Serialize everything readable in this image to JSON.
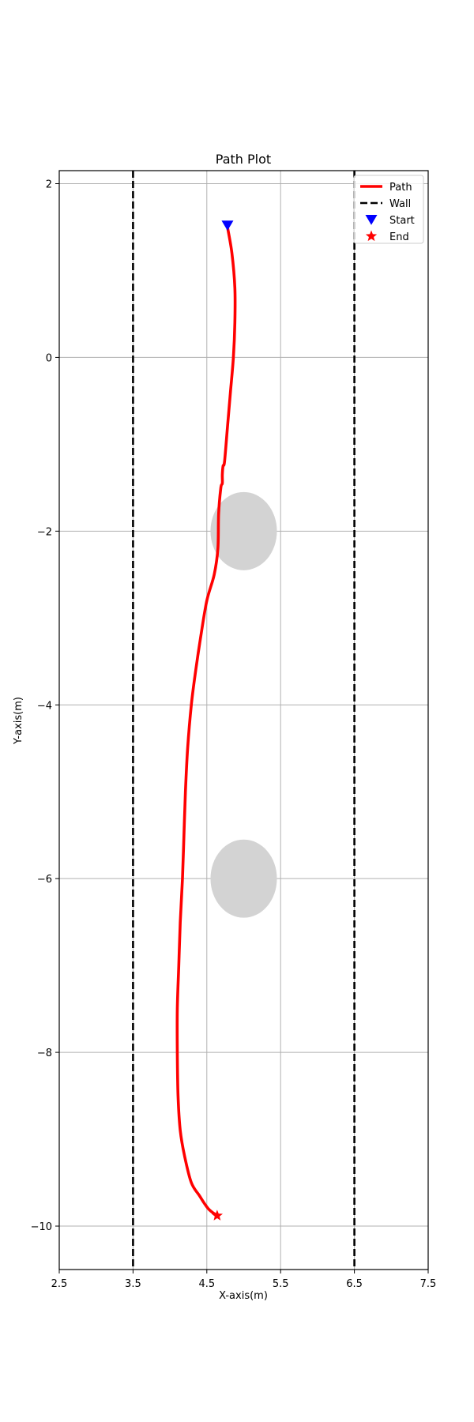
{
  "chart_data": {
    "type": "line",
    "title": "Path Plot",
    "xlabel": "X-axis(m)",
    "ylabel": "Y-axis(m)",
    "xlim": [
      2.5,
      7.5
    ],
    "ylim": [
      -10.5,
      2.15
    ],
    "xticks": [
      2.5,
      3.5,
      4.5,
      5.5,
      6.5,
      7.5
    ],
    "xtick_labels": [
      "2.5",
      "3.5",
      "4.5",
      "5.5",
      "6.5",
      "7.5"
    ],
    "yticks": [
      2,
      0,
      -2,
      -4,
      -6,
      -8,
      -10
    ],
    "ytick_labels": [
      "2",
      "0",
      "−2",
      "−4",
      "−6",
      "−8",
      "−10"
    ],
    "grid": true,
    "legend_position": "top-right",
    "legend": [
      {
        "label": "Path",
        "style": "line",
        "color": "#ff0000"
      },
      {
        "label": "Wall",
        "style": "dashed",
        "color": "#000000"
      },
      {
        "label": "Start",
        "style": "triangle-down",
        "color": "#0000ff"
      },
      {
        "label": "End",
        "style": "star",
        "color": "#ff0000"
      }
    ],
    "series": [
      {
        "name": "Path",
        "color": "#ff0000",
        "x": [
          4.78,
          4.84,
          4.88,
          4.88,
          4.86,
          4.82,
          4.78,
          4.74,
          4.72,
          4.71,
          4.71,
          4.69,
          4.66,
          4.65,
          4.6,
          4.5,
          4.42,
          4.35,
          4.29,
          4.24,
          4.21,
          4.19,
          4.17,
          4.14,
          4.12,
          4.1,
          4.1,
          4.11,
          4.14,
          4.2,
          4.29,
          4.4,
          4.52,
          4.64
        ],
        "y": [
          1.5,
          1.2,
          0.8,
          0.4,
          0.0,
          -0.4,
          -0.8,
          -1.2,
          -1.25,
          -1.35,
          -1.45,
          -1.5,
          -1.8,
          -2.2,
          -2.5,
          -2.8,
          -3.2,
          -3.6,
          -4.0,
          -4.5,
          -5.0,
          -5.5,
          -6.0,
          -6.5,
          -7.0,
          -7.5,
          -8.0,
          -8.5,
          -8.9,
          -9.2,
          -9.5,
          -9.65,
          -9.8,
          -9.88
        ]
      }
    ],
    "walls": [
      {
        "name": "Wall",
        "x": 3.5,
        "color": "#000000"
      },
      {
        "name": "Wall",
        "x": 6.5,
        "color": "#000000"
      }
    ],
    "start": {
      "name": "Start",
      "x": 4.78,
      "y": 1.52,
      "color": "#0000ff"
    },
    "end": {
      "name": "End",
      "x": 4.64,
      "y": -9.88,
      "color": "#ff0000"
    },
    "obstacles": [
      {
        "cx": 5.0,
        "cy": -2.0,
        "rx": 0.45,
        "ry": 0.45,
        "color": "#d3d3d3"
      },
      {
        "cx": 5.0,
        "cy": -6.0,
        "rx": 0.45,
        "ry": 0.45,
        "color": "#d3d3d3"
      }
    ]
  }
}
